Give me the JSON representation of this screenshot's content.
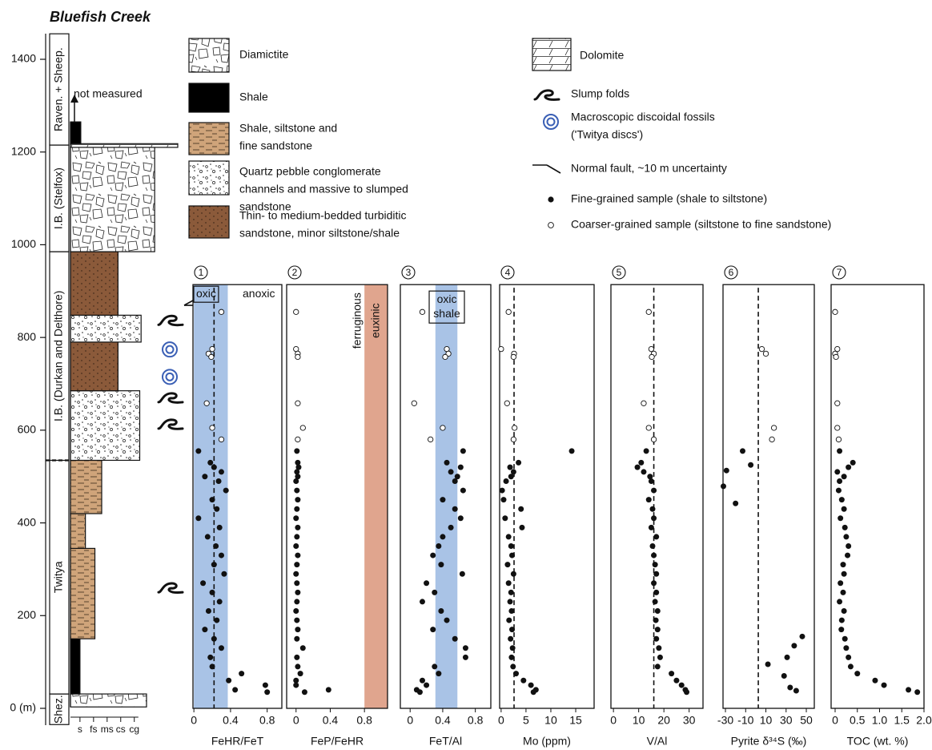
{
  "chart_data": {
    "type": "stratigraphic-scatter",
    "title": "Bluefish Creek",
    "ylim": [
      0,
      1400
    ],
    "yticks": [
      {
        "value": 0,
        "label": "0 (m)"
      },
      200,
      400,
      600,
      800,
      1000,
      1200,
      1400
    ],
    "panel_ylim": [
      0,
      914
    ],
    "column": {
      "xlim": [
        0.3,
        8.2
      ],
      "xticks": [
        {
          "value": 1,
          "label": "s"
        },
        {
          "value": 2,
          "label": "fs"
        },
        {
          "value": 3,
          "label": "ms"
        },
        {
          "value": 4,
          "label": "cs"
        },
        {
          "value": 5,
          "label": "cg"
        }
      ],
      "formations": [
        {
          "name": "Shez.",
          "base": -35,
          "top": 31
        },
        {
          "name": "Twitya",
          "base": 31,
          "top": 535
        },
        {
          "name": "I.B. (Durkan and Delthore)",
          "base": 535,
          "top": 985
        },
        {
          "name": "I.B. (Stelfox)",
          "base": 985,
          "top": 1215
        },
        {
          "name": "Raven. + Sheep.",
          "base": 1215,
          "top": 1455
        }
      ],
      "units": [
        {
          "lith": 0,
          "base": 3,
          "top": 31,
          "grain": 5.9
        },
        {
          "lith": 1,
          "base": 31,
          "top": 150,
          "grain": 1.0
        },
        {
          "lith": 2,
          "base": 150,
          "top": 345,
          "grain": 2.1
        },
        {
          "lith": 2,
          "base": 345,
          "top": 420,
          "grain": 1.4
        },
        {
          "lith": 2,
          "base": 420,
          "top": 535,
          "grain": 2.6
        },
        {
          "lith": 3,
          "base": 535,
          "top": 685,
          "grain": 5.4
        },
        {
          "lith": 4,
          "base": 685,
          "top": 790,
          "grain": 3.8
        },
        {
          "lith": 3,
          "base": 790,
          "top": 848,
          "grain": 5.5
        },
        {
          "lith": 4,
          "base": 848,
          "top": 985,
          "grain": 3.8
        },
        {
          "lith": 0,
          "base": 985,
          "top": 1210,
          "grain": 6.5
        },
        {
          "lith": 5,
          "base": 1210,
          "top": 1218,
          "grain": 8.2
        },
        {
          "lith": 1,
          "base": 1218,
          "top": 1265,
          "grain": 1.06
        }
      ],
      "features": [
        {
          "kind": "fault",
          "depth": 878
        },
        {
          "kind": "slump",
          "depth": 836
        },
        {
          "kind": "disc",
          "depth": 774
        },
        {
          "kind": "disc",
          "depth": 715
        },
        {
          "kind": "slump",
          "depth": 669
        },
        {
          "kind": "slump",
          "depth": 612
        },
        {
          "kind": "slump",
          "depth": 259
        }
      ],
      "note": "not measured"
    },
    "legend": {
      "lithologies": [
        {
          "lines": [
            "Diamictite"
          ]
        },
        {
          "lines": [
            "Shale"
          ]
        },
        {
          "lines": [
            "Shale, siltstone and",
            "fine sandstone"
          ]
        },
        {
          "lines": [
            "Quartz pebble conglomerate",
            "channels and massive to slumped",
            "sandstone"
          ]
        },
        {
          "lines": [
            "Thin- to medium-bedded turbiditic",
            "sandstone, minor siltstone/shale"
          ]
        },
        {
          "lines": [
            "Dolomite"
          ]
        }
      ],
      "symbols": [
        {
          "kind": "slump",
          "lines": [
            "Slump folds"
          ]
        },
        {
          "kind": "disc",
          "lines": [
            "Macroscopic discoidal fossils",
            "('Twitya discs')"
          ]
        },
        {
          "kind": "fault",
          "lines": [
            "Normal fault, ~10 m uncertainty"
          ]
        },
        {
          "kind": "fine",
          "lines": [
            "Fine-grained sample (shale to siltstone)"
          ]
        },
        {
          "kind": "coarse",
          "lines": [
            "Coarser-grained sample (siltstone to fine sandstone)"
          ]
        }
      ]
    },
    "panels": [
      {
        "number": 1,
        "xlabel": "FeHR/FeT",
        "xlim": [
          -0.01,
          0.96
        ],
        "xticks": [
          0,
          0.4,
          0.8
        ],
        "bands": [
          {
            "range": [
              0,
              0.37
            ],
            "color": "#a9c3e6"
          }
        ],
        "reference": 0.22,
        "notes": [
          "oxic",
          "anoxic"
        ],
        "fine": {
          "y": [
            555,
            530,
            520,
            510,
            500,
            490,
            470,
            450,
            430,
            410,
            390,
            370,
            350,
            330,
            310,
            290,
            270,
            250,
            230,
            210,
            190,
            170,
            150,
            130,
            110,
            90,
            75,
            60,
            50,
            40,
            35
          ],
          "x": [
            0.05,
            0.18,
            0.22,
            0.3,
            0.12,
            0.27,
            0.35,
            0.2,
            0.25,
            0.05,
            0.28,
            0.15,
            0.24,
            0.3,
            0.22,
            0.33,
            0.1,
            0.2,
            0.28,
            0.16,
            0.25,
            0.12,
            0.22,
            0.3,
            0.18,
            0.2,
            0.52,
            0.38,
            0.78,
            0.45,
            0.8
          ]
        },
        "coarse": {
          "y": [
            855,
            775,
            765,
            758,
            658,
            605,
            580
          ],
          "x": [
            0.3,
            0.2,
            0.16,
            0.19,
            0.14,
            0.2,
            0.3
          ]
        }
      },
      {
        "number": 2,
        "xlabel": "FeP/FeHR",
        "xlim": [
          -0.11,
          1.07
        ],
        "xticks": [
          0,
          0.4,
          0.8
        ],
        "bands": [
          {
            "range": [
              0.8,
              1.07
            ],
            "color": "#e0a58e"
          }
        ],
        "notes": [
          "ferruginous",
          "euxinic"
        ],
        "fine": {
          "y": [
            555,
            530,
            520,
            510,
            500,
            490,
            470,
            450,
            430,
            410,
            390,
            370,
            350,
            330,
            310,
            290,
            270,
            250,
            230,
            210,
            190,
            170,
            150,
            130,
            110,
            90,
            75,
            60,
            50,
            40,
            35
          ],
          "x": [
            0.01,
            0.02,
            0.03,
            0.01,
            0.02,
            0.0,
            0.01,
            0.02,
            0.01,
            0.0,
            0.02,
            0.01,
            0.0,
            0.02,
            0.01,
            0.0,
            0.01,
            0.02,
            0.01,
            0.0,
            0.01,
            0.02,
            0.01,
            0.08,
            0.01,
            0.02,
            0.05,
            0.0,
            0.0,
            0.38,
            0.1
          ]
        },
        "coarse": {
          "y": [
            855,
            775,
            765,
            758,
            658,
            605,
            580
          ],
          "x": [
            0.0,
            0.0,
            0.02,
            0.02,
            0.02,
            0.08,
            0.02
          ]
        }
      },
      {
        "number": 3,
        "xlabel": "FeT/Al",
        "xlim": [
          -0.12,
          0.99
        ],
        "xticks": [
          0,
          0.4,
          0.8
        ],
        "bands": [
          {
            "range": [
              0.31,
              0.58
            ],
            "color": "#a9c3e6"
          }
        ],
        "notes": [
          "oxic",
          "shale"
        ],
        "fine": {
          "y": [
            555,
            530,
            520,
            510,
            500,
            490,
            470,
            450,
            430,
            410,
            390,
            370,
            350,
            330,
            310,
            290,
            270,
            250,
            230,
            210,
            190,
            170,
            150,
            130,
            110,
            90,
            75,
            60,
            50,
            40,
            35
          ],
          "x": [
            0.65,
            0.45,
            0.62,
            0.5,
            0.58,
            0.55,
            0.65,
            0.4,
            0.55,
            0.62,
            0.5,
            0.4,
            0.35,
            0.28,
            0.38,
            0.64,
            0.2,
            0.3,
            0.15,
            0.38,
            0.45,
            0.28,
            0.55,
            0.68,
            0.68,
            0.3,
            0.35,
            0.15,
            0.2,
            0.08,
            0.12
          ]
        },
        "coarse": {
          "y": [
            855,
            775,
            765,
            758,
            658,
            605,
            580
          ],
          "x": [
            0.15,
            0.45,
            0.47,
            0.43,
            0.05,
            0.4,
            0.25
          ]
        }
      },
      {
        "number": 4,
        "xlabel": "Mo (ppm)",
        "xlim": [
          -0.3,
          18.7
        ],
        "xticks": [
          0,
          5,
          10,
          15
        ],
        "reference": 2.6,
        "fine": {
          "y": [
            555,
            530,
            520,
            510,
            500,
            490,
            470,
            450,
            430,
            410,
            390,
            370,
            350,
            330,
            310,
            290,
            270,
            250,
            230,
            210,
            190,
            170,
            150,
            130,
            110,
            90,
            75,
            60,
            50,
            40,
            35
          ],
          "x": [
            14.2,
            3.5,
            1.8,
            2.5,
            2.0,
            1.0,
            0.2,
            0.5,
            4.0,
            0.8,
            4.2,
            1.5,
            2.0,
            2.2,
            1.3,
            2.5,
            1.5,
            2.0,
            1.8,
            2.1,
            1.6,
            2.2,
            1.9,
            2.3,
            2.1,
            2.4,
            3.0,
            4.5,
            6.0,
            7.0,
            6.5
          ]
        },
        "coarse": {
          "y": [
            855,
            775,
            765,
            758,
            658,
            605,
            580
          ],
          "x": [
            1.5,
            0.0,
            2.6,
            2.5,
            1.2,
            2.7,
            2.5
          ]
        }
      },
      {
        "number": 5,
        "xlabel": "V/Al",
        "xlim": [
          -1,
          35.5
        ],
        "xticks": [
          0,
          10,
          20,
          30
        ],
        "reference": 16,
        "fine": {
          "y": [
            555,
            530,
            520,
            510,
            500,
            490,
            470,
            450,
            430,
            410,
            390,
            370,
            350,
            330,
            310,
            290,
            270,
            250,
            230,
            210,
            190,
            170,
            150,
            130,
            110,
            90,
            75,
            60,
            50,
            40,
            35
          ],
          "x": [
            13,
            11,
            9.5,
            12,
            14.5,
            15,
            16,
            14,
            15.5,
            16,
            15,
            17,
            15.5,
            16,
            16.5,
            17,
            16,
            17,
            16.5,
            17.5,
            16.8,
            17.5,
            17,
            18,
            18.5,
            17.5,
            23,
            25,
            27,
            28.5,
            29
          ]
        },
        "coarse": {
          "y": [
            855,
            775,
            765,
            758,
            658,
            605,
            580
          ],
          "x": [
            14,
            15,
            16,
            15.2,
            12,
            14,
            16
          ]
        }
      },
      {
        "number": 6,
        "xlabel": "Pyrite δ³⁴S (‰)",
        "xlim": [
          -32.4,
          57.9
        ],
        "xticks": [
          -30,
          -10,
          10,
          30,
          50
        ],
        "reference": 2.5,
        "fine": {
          "y": [
            555,
            525,
            513,
            479,
            442,
            155,
            135,
            110,
            95,
            70,
            45,
            38
          ],
          "x": [
            -13,
            -5,
            -29,
            -32,
            -20,
            46,
            38,
            31,
            12,
            28,
            34,
            40
          ]
        },
        "coarse": {
          "y": [
            775,
            765,
            605,
            580
          ],
          "x": [
            6,
            10,
            18,
            16
          ]
        }
      },
      {
        "number": 7,
        "xlabel": "TOC (wt. %)",
        "xlim": [
          -0.09,
          2.0
        ],
        "xticks": [
          0,
          0.5,
          {
            "value": 1,
            "label": "1.0"
          },
          1.5,
          {
            "value": 2,
            "label": "2.0"
          }
        ],
        "fine": {
          "y": [
            555,
            530,
            520,
            510,
            500,
            490,
            470,
            450,
            430,
            410,
            390,
            370,
            350,
            330,
            310,
            290,
            270,
            250,
            230,
            210,
            190,
            170,
            150,
            130,
            110,
            90,
            75,
            60,
            50,
            40,
            35
          ],
          "x": [
            0.1,
            0.4,
            0.3,
            0.05,
            0.2,
            0.1,
            0.08,
            0.15,
            0.2,
            0.12,
            0.22,
            0.25,
            0.3,
            0.28,
            0.18,
            0.2,
            0.12,
            0.18,
            0.1,
            0.2,
            0.15,
            0.14,
            0.22,
            0.25,
            0.3,
            0.35,
            0.5,
            0.9,
            1.1,
            1.65,
            1.85
          ]
        },
        "coarse": {
          "y": [
            855,
            775,
            765,
            758,
            658,
            605,
            580
          ],
          "x": [
            0.0,
            0.05,
            0.0,
            0.02,
            0.05,
            0.05,
            0.08
          ]
        }
      }
    ]
  }
}
